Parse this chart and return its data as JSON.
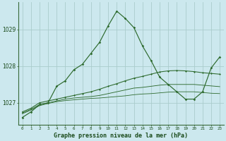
{
  "title": "Graphe pression niveau de la mer (hPa)",
  "background_color": "#cce8ee",
  "grid_color": "#aacccc",
  "line_color": "#2d6a2d",
  "x_labels": [
    "0",
    "1",
    "2",
    "3",
    "4",
    "5",
    "6",
    "7",
    "8",
    "9",
    "10",
    "11",
    "12",
    "13",
    "14",
    "15",
    "16",
    "17",
    "18",
    "19",
    "20",
    "21",
    "22",
    "23"
  ],
  "y_ticks": [
    1027,
    1028,
    1029
  ],
  "ylim": [
    1026.4,
    1029.75
  ],
  "series": {
    "main": [
      1026.6,
      1026.75,
      1026.95,
      1027.0,
      1027.45,
      1027.6,
      1027.9,
      1028.05,
      1028.35,
      1028.65,
      1029.1,
      1029.5,
      1029.3,
      1029.05,
      1028.55,
      1028.15,
      1027.7,
      1027.5,
      1027.3,
      1027.1,
      1027.1,
      1027.3,
      1027.95,
      1028.25
    ],
    "trend1": [
      1026.75,
      1026.85,
      1027.0,
      1027.05,
      1027.1,
      1027.15,
      1027.2,
      1027.25,
      1027.3,
      1027.37,
      1027.45,
      1027.52,
      1027.6,
      1027.67,
      1027.72,
      1027.78,
      1027.84,
      1027.87,
      1027.88,
      1027.87,
      1027.85,
      1027.82,
      1027.8,
      1027.78
    ],
    "trend2": [
      1026.72,
      1026.82,
      1026.95,
      1027.0,
      1027.05,
      1027.1,
      1027.13,
      1027.15,
      1027.17,
      1027.2,
      1027.25,
      1027.3,
      1027.35,
      1027.4,
      1027.42,
      1027.45,
      1027.48,
      1027.5,
      1027.5,
      1027.5,
      1027.5,
      1027.48,
      1027.46,
      1027.44
    ],
    "trend3": [
      1026.7,
      1026.8,
      1026.92,
      1026.98,
      1027.03,
      1027.06,
      1027.08,
      1027.1,
      1027.12,
      1027.13,
      1027.15,
      1027.17,
      1027.19,
      1027.22,
      1027.24,
      1027.25,
      1027.27,
      1027.29,
      1027.3,
      1027.3,
      1027.3,
      1027.28,
      1027.26,
      1027.25
    ]
  }
}
